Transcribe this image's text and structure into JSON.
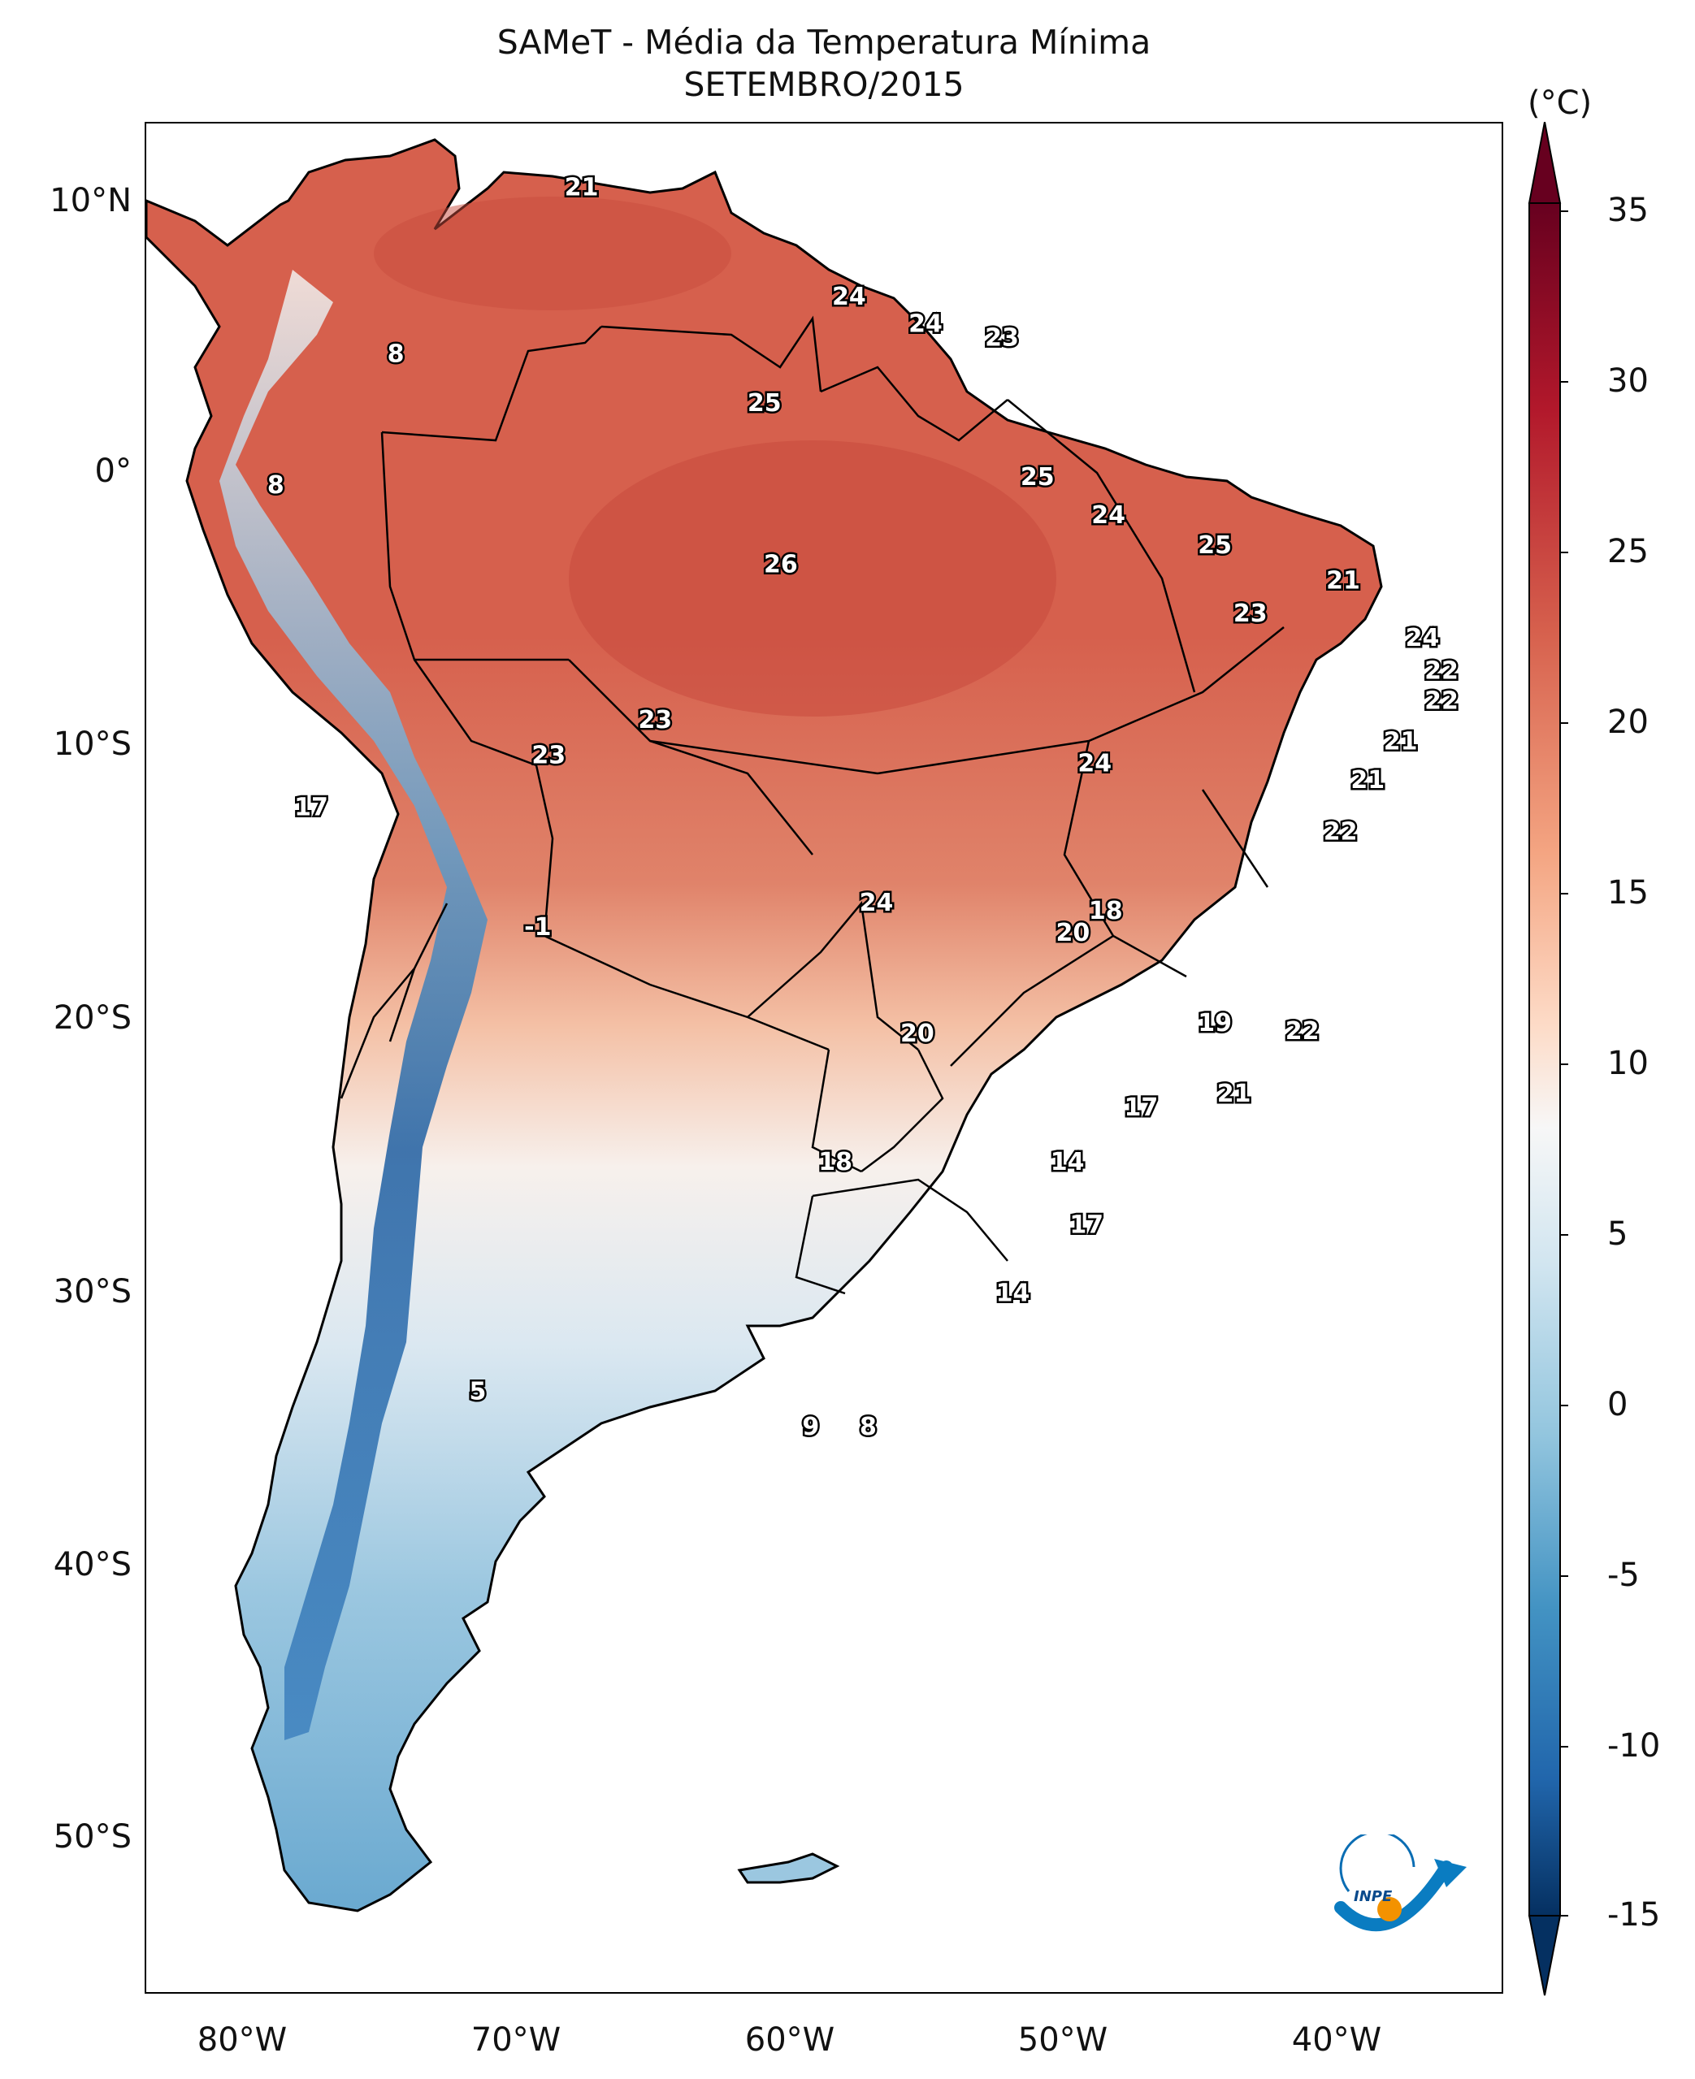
{
  "title": {
    "line1": "SAMeT - Média da Temperatura Mínima",
    "line2": "SETEMBRO/2015"
  },
  "colorbar": {
    "unit": "(°C)",
    "ticks": [
      "35",
      "30",
      "25",
      "20",
      "15",
      "10",
      "5",
      "0",
      "-5",
      "-10",
      "-15"
    ],
    "range": [
      -15,
      35
    ],
    "colors": {
      "cold": "#053061",
      "mid": "#f7f7f7",
      "hot": "#67001f"
    }
  },
  "axes": {
    "lat_labels": [
      "10°N",
      "0°",
      "10°S",
      "20°S",
      "30°S",
      "40°S",
      "50°S"
    ],
    "lon_labels": [
      "80°W",
      "70°W",
      "60°W",
      "50°W",
      "40°W"
    ]
  },
  "map": {
    "region": "South America",
    "contour_labels": [
      {
        "text": "21",
        "lon": -67.0,
        "lat": 10.6,
        "value": 21
      },
      {
        "text": "8",
        "lon": -73.8,
        "lat": 4.5,
        "value": 8
      },
      {
        "text": "8",
        "lon": -78.2,
        "lat": -0.3,
        "value": 8
      },
      {
        "text": "24",
        "lon": -57.2,
        "lat": 6.6,
        "value": 24
      },
      {
        "text": "24",
        "lon": -54.4,
        "lat": 5.6,
        "value": 24
      },
      {
        "text": "23",
        "lon": -51.6,
        "lat": 5.1,
        "value": 23
      },
      {
        "text": "25",
        "lon": -60.3,
        "lat": 2.7,
        "value": 25
      },
      {
        "text": "25",
        "lon": -50.3,
        "lat": 0.0,
        "value": 25
      },
      {
        "text": "24",
        "lon": -47.7,
        "lat": -1.4,
        "value": 24
      },
      {
        "text": "25",
        "lon": -43.8,
        "lat": -2.5,
        "value": 25
      },
      {
        "text": "21",
        "lon": -39.1,
        "lat": -3.8,
        "value": 21
      },
      {
        "text": "26",
        "lon": -59.7,
        "lat": -3.2,
        "value": 26
      },
      {
        "text": "23",
        "lon": -42.5,
        "lat": -5.0,
        "value": 23
      },
      {
        "text": "24",
        "lon": -36.2,
        "lat": -5.9,
        "value": 24
      },
      {
        "text": "22",
        "lon": -35.5,
        "lat": -7.1,
        "value": 22
      },
      {
        "text": "22",
        "lon": -35.5,
        "lat": -8.2,
        "value": 22
      },
      {
        "text": "23",
        "lon": -64.3,
        "lat": -8.9,
        "value": 23
      },
      {
        "text": "23",
        "lon": -68.2,
        "lat": -10.2,
        "value": 23
      },
      {
        "text": "21",
        "lon": -37.0,
        "lat": -9.7,
        "value": 21
      },
      {
        "text": "21",
        "lon": -38.2,
        "lat": -11.1,
        "value": 21
      },
      {
        "text": "24",
        "lon": -48.2,
        "lat": -10.5,
        "value": 24
      },
      {
        "text": "17",
        "lon": -76.9,
        "lat": -12.1,
        "value": 17
      },
      {
        "text": "22",
        "lon": -39.2,
        "lat": -13.0,
        "value": 22
      },
      {
        "text": "24",
        "lon": -56.2,
        "lat": -15.6,
        "value": 24
      },
      {
        "text": "18",
        "lon": -47.8,
        "lat": -15.9,
        "value": 18
      },
      {
        "text": "20",
        "lon": -49.0,
        "lat": -16.7,
        "value": 20
      },
      {
        "text": "-1",
        "lon": -68.6,
        "lat": -16.5,
        "value": -1
      },
      {
        "text": "19",
        "lon": -43.8,
        "lat": -20.0,
        "value": 19
      },
      {
        "text": "22",
        "lon": -40.6,
        "lat": -20.3,
        "value": 22
      },
      {
        "text": "20",
        "lon": -54.7,
        "lat": -20.4,
        "value": 20
      },
      {
        "text": "17",
        "lon": -46.5,
        "lat": -23.1,
        "value": 17
      },
      {
        "text": "21",
        "lon": -43.1,
        "lat": -22.6,
        "value": 21
      },
      {
        "text": "18",
        "lon": -57.7,
        "lat": -25.1,
        "value": 18
      },
      {
        "text": "14",
        "lon": -49.2,
        "lat": -25.1,
        "value": 14
      },
      {
        "text": "17",
        "lon": -48.5,
        "lat": -27.4,
        "value": 17
      },
      {
        "text": "14",
        "lon": -51.2,
        "lat": -29.9,
        "value": 14
      },
      {
        "text": "5",
        "lon": -70.8,
        "lat": -33.5,
        "value": 5
      },
      {
        "text": "9",
        "lon": -58.6,
        "lat": -34.8,
        "value": 9
      },
      {
        "text": "8",
        "lon": -56.5,
        "lat": -34.8,
        "value": 8
      }
    ]
  }
}
